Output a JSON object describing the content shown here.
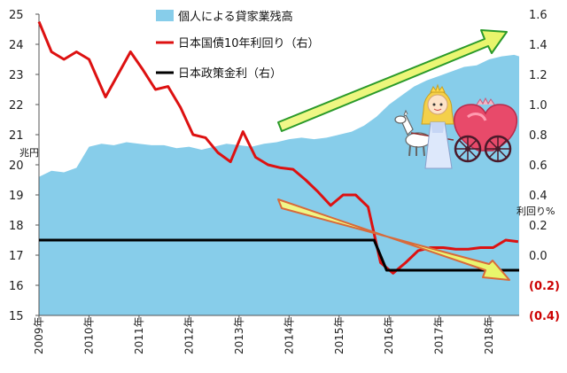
{
  "chart_data": {
    "type": "area+line",
    "y_left": {
      "min": 15,
      "max": 25,
      "ticks": [
        "15",
        "16",
        "17",
        "18",
        "19",
        "20",
        "21",
        "22",
        "23",
        "24",
        "25"
      ],
      "label": "兆円"
    },
    "y_right": {
      "min": -0.4,
      "max": 1.6,
      "ticks": [
        {
          "v": 1.6,
          "t": "1.6"
        },
        {
          "v": 1.4,
          "t": "1.4"
        },
        {
          "v": 1.2,
          "t": "1.2"
        },
        {
          "v": 1.0,
          "t": "1.0"
        },
        {
          "v": 0.8,
          "t": "0.8"
        },
        {
          "v": 0.6,
          "t": "0.6"
        },
        {
          "v": 0.4,
          "t": "0.4"
        },
        {
          "v": 0.2,
          "t": "0.2"
        },
        {
          "v": 0.0,
          "t": "0.0"
        },
        {
          "v": -0.2,
          "t": "(0.2)"
        },
        {
          "v": -0.4,
          "t": "(0.4)"
        }
      ],
      "label": "利回り%"
    },
    "x_range": [
      2009,
      2018.6
    ],
    "x_ticks": [
      {
        "v": 2009,
        "t": "2009年"
      },
      {
        "v": 2010,
        "t": "2010年"
      },
      {
        "v": 2011,
        "t": "2011年"
      },
      {
        "v": 2012,
        "t": "2012年"
      },
      {
        "v": 2013,
        "t": "2013年"
      },
      {
        "v": 2014,
        "t": "2014年"
      },
      {
        "v": 2015,
        "t": "2015年"
      },
      {
        "v": 2016,
        "t": "2016年"
      },
      {
        "v": 2017,
        "t": "2017年"
      },
      {
        "v": 2018,
        "t": "2018年"
      }
    ],
    "legend": [
      {
        "name": "個人による貸家業残高",
        "color": "#87cdea",
        "kind": "area"
      },
      {
        "name": "日本国債10年利回り（右）",
        "color": "#dd1111",
        "kind": "line"
      },
      {
        "name": "日本政策金利（右）",
        "color": "#000000",
        "kind": "line"
      }
    ],
    "series": [
      {
        "name": "個人による貸家業残高",
        "axis": "left",
        "color": "#87cdea",
        "x": [
          2009.0,
          2009.25,
          2009.5,
          2009.75,
          2010.0,
          2010.25,
          2010.5,
          2010.75,
          2011.0,
          2011.25,
          2011.5,
          2011.75,
          2012.0,
          2012.25,
          2012.5,
          2012.75,
          2013.0,
          2013.25,
          2013.5,
          2013.75,
          2014.0,
          2014.25,
          2014.5,
          2014.75,
          2015.0,
          2015.25,
          2015.5,
          2015.75,
          2016.0,
          2016.25,
          2016.5,
          2016.75,
          2017.0,
          2017.25,
          2017.5,
          2017.75,
          2018.0,
          2018.25,
          2018.5,
          2018.6
        ],
        "values": [
          19.6,
          19.8,
          19.75,
          19.9,
          20.6,
          20.7,
          20.65,
          20.75,
          20.7,
          20.65,
          20.65,
          20.55,
          20.6,
          20.5,
          20.6,
          20.7,
          20.65,
          20.6,
          20.7,
          20.75,
          20.85,
          20.9,
          20.85,
          20.9,
          21.0,
          21.1,
          21.3,
          21.6,
          22.0,
          22.3,
          22.6,
          22.8,
          22.95,
          23.1,
          23.25,
          23.3,
          23.5,
          23.6,
          23.65,
          23.6
        ]
      },
      {
        "name": "日本国債10年利回り（右）",
        "axis": "right",
        "color": "#dd1111",
        "x": [
          2009.0,
          2009.25,
          2009.5,
          2009.75,
          2010.0,
          2010.33,
          2010.58,
          2010.83,
          2011.08,
          2011.33,
          2011.58,
          2011.83,
          2012.08,
          2012.33,
          2012.58,
          2012.83,
          2013.08,
          2013.33,
          2013.58,
          2013.83,
          2014.08,
          2014.33,
          2014.58,
          2014.83,
          2015.08,
          2015.33,
          2015.58,
          2015.83,
          2016.08,
          2016.33,
          2016.58,
          2016.83,
          2017.08,
          2017.33,
          2017.58,
          2017.83,
          2018.08,
          2018.33,
          2018.58
        ],
        "values": [
          1.55,
          1.35,
          1.3,
          1.35,
          1.3,
          1.05,
          1.2,
          1.35,
          1.23,
          1.1,
          1.12,
          0.98,
          0.8,
          0.78,
          0.68,
          0.62,
          0.82,
          0.65,
          0.6,
          0.58,
          0.57,
          0.5,
          0.42,
          0.33,
          0.4,
          0.4,
          0.32,
          -0.05,
          -0.12,
          -0.05,
          0.03,
          0.05,
          0.05,
          0.04,
          0.04,
          0.05,
          0.05,
          0.1,
          0.09
        ]
      },
      {
        "name": "日本政策金利（右）",
        "axis": "right",
        "color": "#000000",
        "x": [
          2009.0,
          2015.7,
          2015.95,
          2018.6
        ],
        "values": [
          0.1,
          0.1,
          -0.1,
          -0.1
        ]
      }
    ]
  }
}
